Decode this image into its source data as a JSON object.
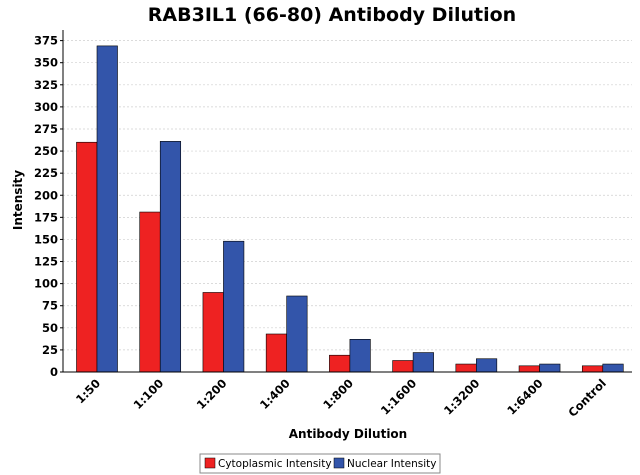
{
  "chart_data": {
    "type": "bar",
    "title": "RAB3IL1 (66-80) Antibody Dilution",
    "xlabel": "Antibody Dilution",
    "ylabel": "Intensity",
    "categories": [
      "1:50",
      "1:100",
      "1:200",
      "1:400",
      "1:800",
      "1:1600",
      "1:3200",
      "1:6400",
      "Control"
    ],
    "series": [
      {
        "name": "Cytoplasmic Intensity",
        "color": "#ee2222",
        "values": [
          260,
          181,
          90,
          43,
          19,
          13,
          9,
          7,
          7
        ]
      },
      {
        "name": "Nuclear Intensity",
        "color": "#3355aa",
        "values": [
          369,
          261,
          148,
          86,
          37,
          22,
          15,
          9,
          9
        ]
      }
    ],
    "ylim": [
      0,
      387
    ],
    "yticks": [
      0,
      25,
      50,
      75,
      100,
      125,
      150,
      175,
      200,
      225,
      250,
      275,
      300,
      325,
      350,
      375
    ],
    "grid": true,
    "legend_position": "bottom-center"
  }
}
